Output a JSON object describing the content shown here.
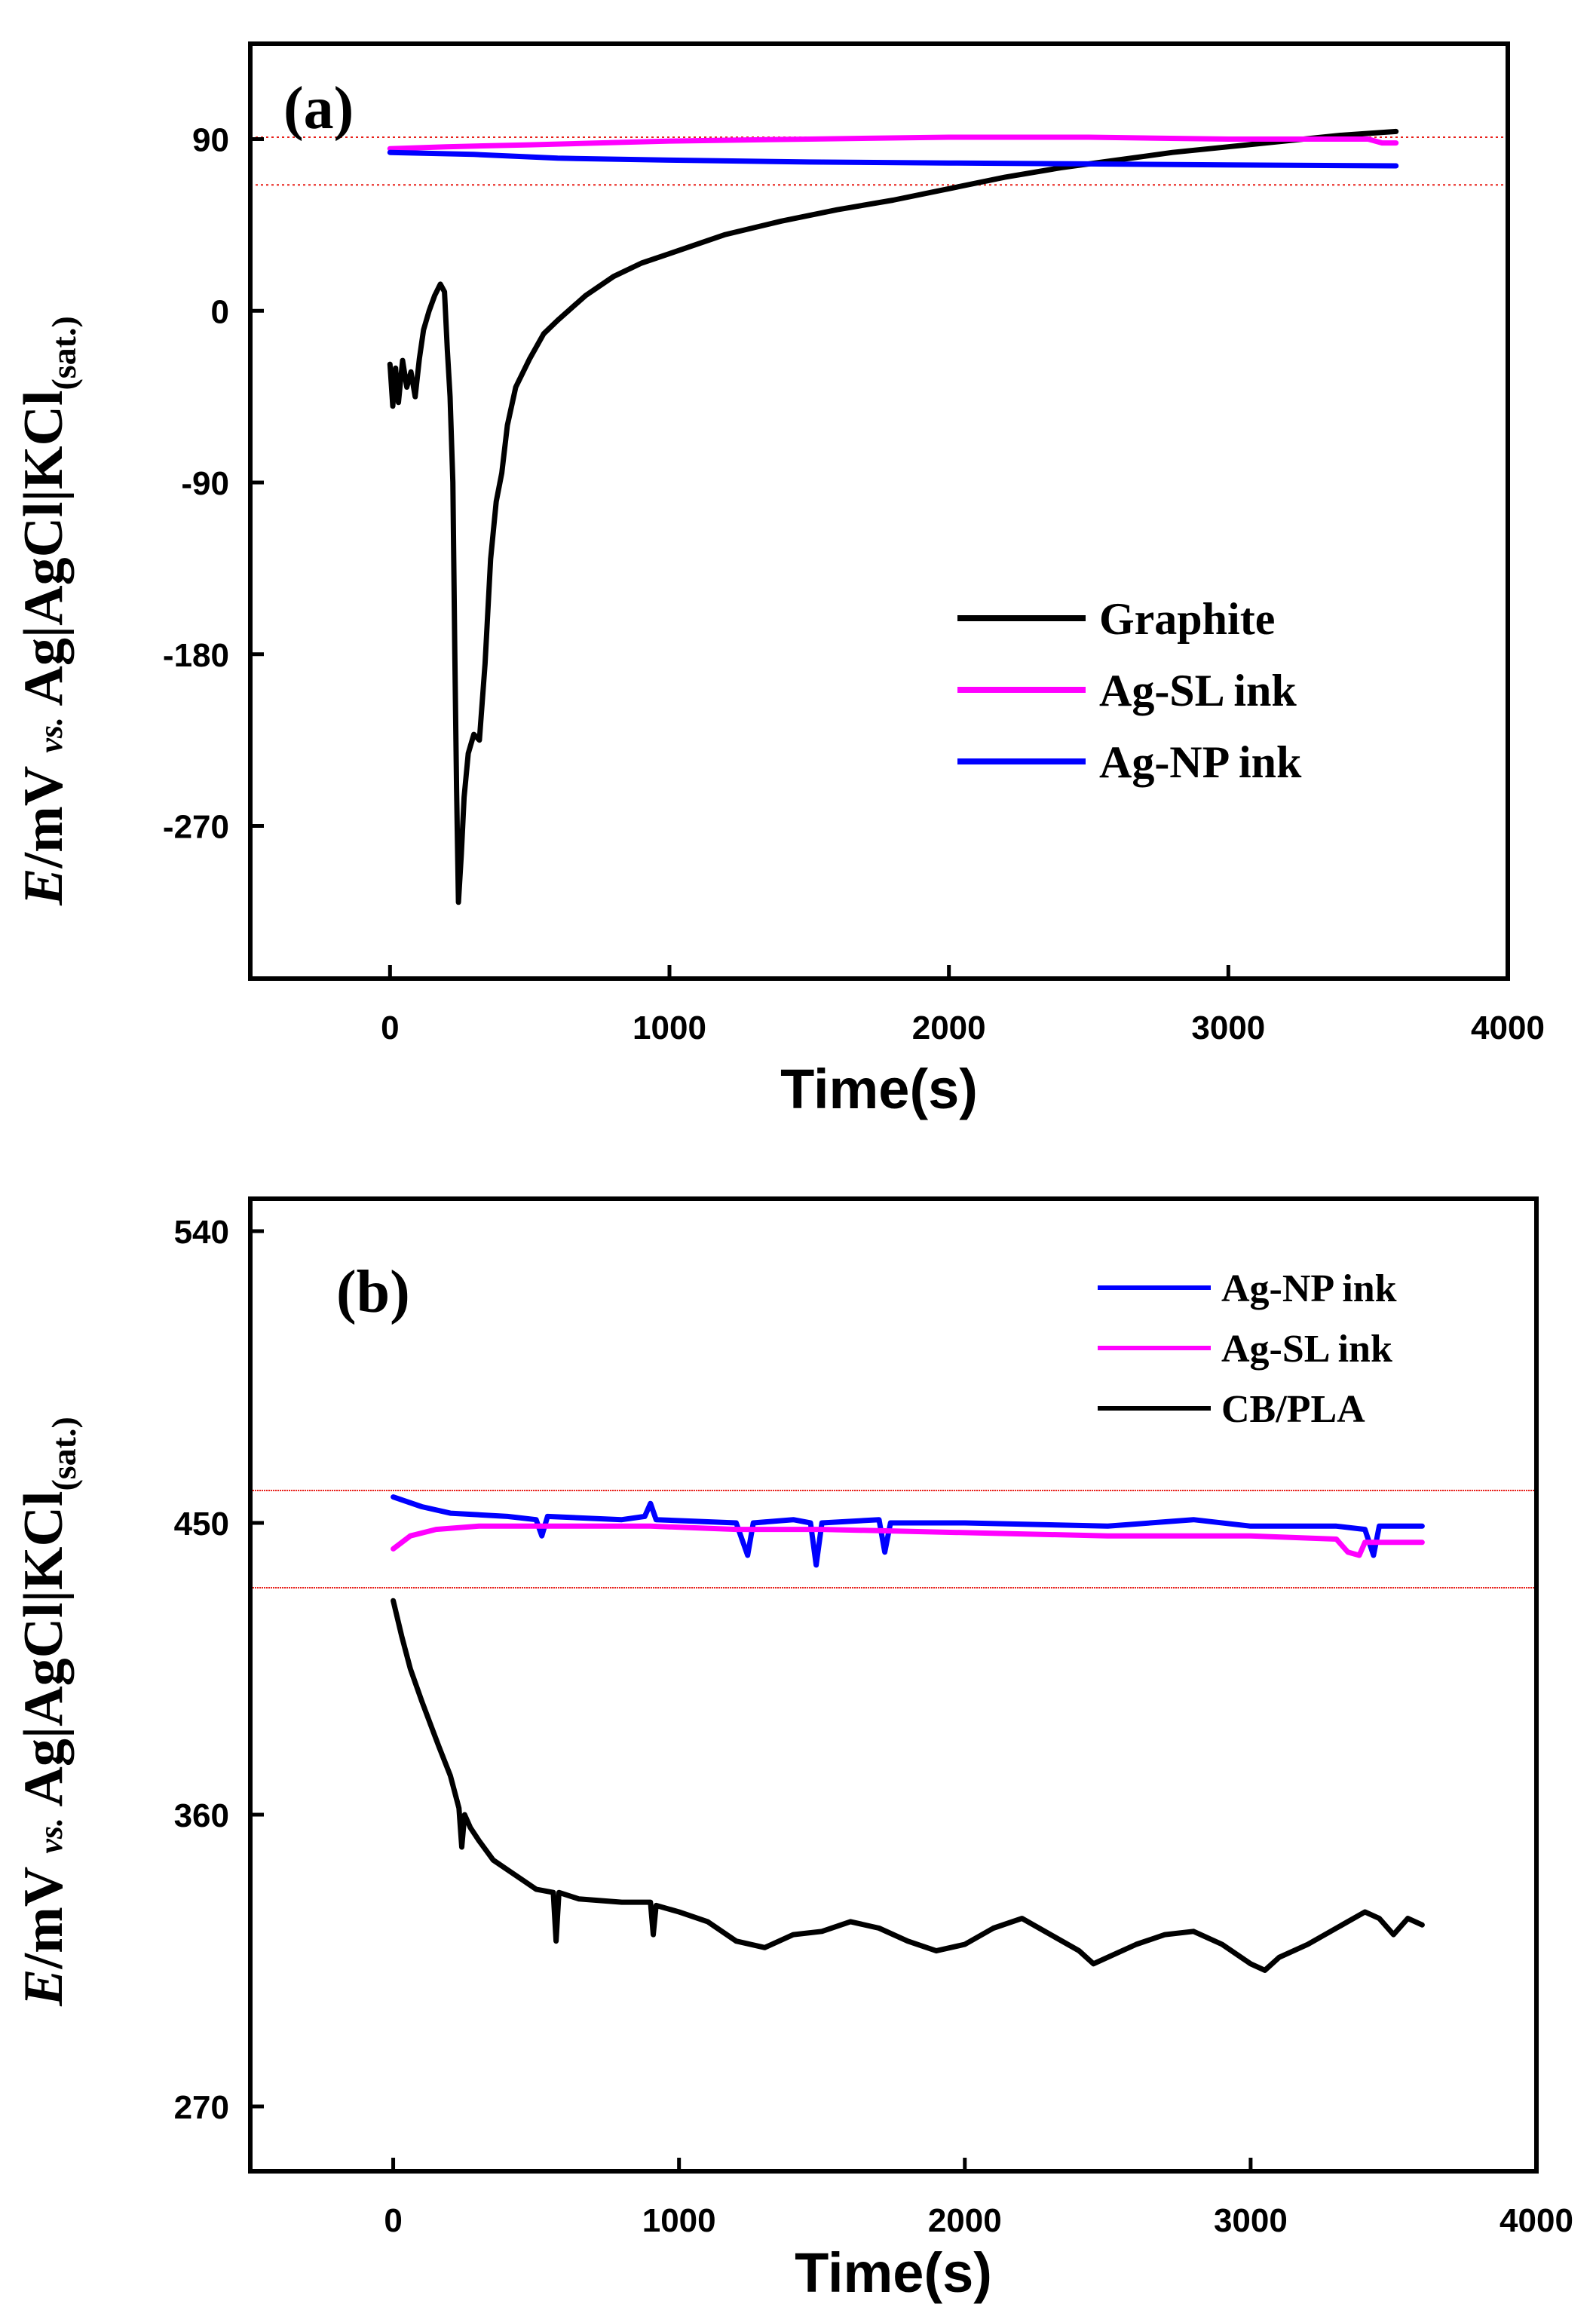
{
  "chart_data": [
    {
      "type": "line",
      "panel_label": "(a)",
      "xlabel": "Time(s)",
      "ylabel": {
        "E": "E",
        "unit": "/mV ",
        "vs": "vs.",
        "ref": " Ag|AgCl|KCl",
        "sub": "(sat.)"
      },
      "xlim": [
        -500,
        4000
      ],
      "ylim": [
        -350,
        140
      ],
      "xticks": [
        0,
        1000,
        2000,
        3000,
        4000
      ],
      "yticks": [
        90,
        0,
        -90,
        -180,
        -270
      ],
      "reference_lines": [
        91,
        66
      ],
      "reference_color": "#e8201a",
      "series": [
        {
          "name": "Graphite",
          "color": "#000000",
          "points": [
            [
              0,
              -28
            ],
            [
              10,
              -50
            ],
            [
              20,
              -30
            ],
            [
              30,
              -48
            ],
            [
              45,
              -26
            ],
            [
              60,
              -40
            ],
            [
              75,
              -32
            ],
            [
              90,
              -45
            ],
            [
              105,
              -25
            ],
            [
              120,
              -10
            ],
            [
              140,
              0
            ],
            [
              160,
              8
            ],
            [
              180,
              14
            ],
            [
              195,
              10
            ],
            [
              205,
              -20
            ],
            [
              215,
              -45
            ],
            [
              225,
              -90
            ],
            [
              232,
              -180
            ],
            [
              238,
              -250
            ],
            [
              245,
              -310
            ],
            [
              255,
              -285
            ],
            [
              265,
              -255
            ],
            [
              280,
              -232
            ],
            [
              300,
              -222
            ],
            [
              320,
              -225
            ],
            [
              340,
              -185
            ],
            [
              360,
              -130
            ],
            [
              380,
              -100
            ],
            [
              400,
              -85
            ],
            [
              420,
              -60
            ],
            [
              450,
              -40
            ],
            [
              500,
              -25
            ],
            [
              550,
              -12
            ],
            [
              600,
              -5
            ],
            [
              700,
              8
            ],
            [
              800,
              18
            ],
            [
              900,
              25
            ],
            [
              1000,
              30
            ],
            [
              1200,
              40
            ],
            [
              1400,
              47
            ],
            [
              1600,
              53
            ],
            [
              1800,
              58
            ],
            [
              2000,
              64
            ],
            [
              2200,
              70
            ],
            [
              2400,
              75
            ],
            [
              2600,
              79
            ],
            [
              2800,
              83
            ],
            [
              3000,
              86
            ],
            [
              3200,
              89
            ],
            [
              3400,
              92
            ],
            [
              3600,
              94
            ]
          ]
        },
        {
          "name": "Ag-SL ink",
          "color": "#ff00ff",
          "points": [
            [
              0,
              85
            ],
            [
              200,
              86
            ],
            [
              500,
              87
            ],
            [
              1000,
              89
            ],
            [
              1500,
              90
            ],
            [
              2000,
              91
            ],
            [
              2500,
              91
            ],
            [
              3000,
              90
            ],
            [
              3300,
              90
            ],
            [
              3500,
              90
            ],
            [
              3550,
              88
            ],
            [
              3600,
              88
            ]
          ]
        },
        {
          "name": " Ag-NP ink",
          "color": "#0000ff",
          "points": [
            [
              0,
              83
            ],
            [
              300,
              82
            ],
            [
              600,
              80
            ],
            [
              1000,
              79
            ],
            [
              1500,
              78
            ],
            [
              2000,
              77.5
            ],
            [
              2500,
              77
            ],
            [
              3000,
              76.5
            ],
            [
              3600,
              76
            ]
          ]
        }
      ]
    },
    {
      "type": "line",
      "panel_label": "(b)",
      "xlabel": "Time(s)",
      "ylabel": {
        "E": "E",
        "unit": "/mV ",
        "vs": "vs.",
        "ref": " Ag|AgCl|KCl",
        "sub": "(sat.)"
      },
      "xlim": [
        -500,
        4000
      ],
      "ylim": [
        250,
        550
      ],
      "xticks": [
        0,
        1000,
        2000,
        3000,
        4000
      ],
      "yticks": [
        540,
        450,
        360,
        270
      ],
      "reference_lines": [
        460,
        430
      ],
      "reference_color": "#e8201a",
      "series": [
        {
          "name": "Ag-NP ink",
          "color": "#0000ff",
          "points": [
            [
              0,
              458
            ],
            [
              100,
              455
            ],
            [
              200,
              453
            ],
            [
              400,
              452
            ],
            [
              500,
              451
            ],
            [
              520,
              446
            ],
            [
              540,
              452
            ],
            [
              800,
              451
            ],
            [
              880,
              452
            ],
            [
              900,
              456
            ],
            [
              920,
              451
            ],
            [
              1200,
              450
            ],
            [
              1240,
              440
            ],
            [
              1260,
              450
            ],
            [
              1400,
              451
            ],
            [
              1460,
              450
            ],
            [
              1480,
              437
            ],
            [
              1500,
              450
            ],
            [
              1700,
              451
            ],
            [
              1720,
              441
            ],
            [
              1740,
              450
            ],
            [
              2000,
              450
            ],
            [
              2500,
              449
            ],
            [
              2800,
              451
            ],
            [
              3000,
              449
            ],
            [
              3300,
              449
            ],
            [
              3400,
              448
            ],
            [
              3430,
              440
            ],
            [
              3450,
              449
            ],
            [
              3600,
              449
            ]
          ]
        },
        {
          "name": "Ag-SL ink",
          "color": "#ff00ff",
          "points": [
            [
              0,
              442
            ],
            [
              60,
              446
            ],
            [
              150,
              448
            ],
            [
              300,
              449
            ],
            [
              600,
              449
            ],
            [
              900,
              449
            ],
            [
              1200,
              448
            ],
            [
              1500,
              448
            ],
            [
              2000,
              447
            ],
            [
              2500,
              446
            ],
            [
              3000,
              446
            ],
            [
              3300,
              445
            ],
            [
              3340,
              441
            ],
            [
              3380,
              440
            ],
            [
              3400,
              444
            ],
            [
              3500,
              444
            ],
            [
              3600,
              444
            ]
          ]
        },
        {
          "name": "CB/PLA",
          "color": "#000000",
          "points": [
            [
              0,
              426
            ],
            [
              30,
              415
            ],
            [
              60,
              405
            ],
            [
              100,
              395
            ],
            [
              130,
              388
            ],
            [
              160,
              381
            ],
            [
              200,
              372
            ],
            [
              230,
              362
            ],
            [
              240,
              350
            ],
            [
              250,
              360
            ],
            [
              270,
              356
            ],
            [
              300,
              352
            ],
            [
              350,
              346
            ],
            [
              400,
              343
            ],
            [
              450,
              340
            ],
            [
              500,
              337
            ],
            [
              560,
              336
            ],
            [
              570,
              321
            ],
            [
              580,
              336
            ],
            [
              650,
              334
            ],
            [
              800,
              333
            ],
            [
              900,
              333
            ],
            [
              910,
              323
            ],
            [
              920,
              332
            ],
            [
              1000,
              330
            ],
            [
              1100,
              327
            ],
            [
              1200,
              321
            ],
            [
              1300,
              319
            ],
            [
              1400,
              323
            ],
            [
              1500,
              324
            ],
            [
              1600,
              327
            ],
            [
              1700,
              325
            ],
            [
              1800,
              321
            ],
            [
              1900,
              318
            ],
            [
              2000,
              320
            ],
            [
              2100,
              325
            ],
            [
              2200,
              328
            ],
            [
              2300,
              323
            ],
            [
              2400,
              318
            ],
            [
              2450,
              314
            ],
            [
              2500,
              316
            ],
            [
              2600,
              320
            ],
            [
              2700,
              323
            ],
            [
              2800,
              324
            ],
            [
              2900,
              320
            ],
            [
              3000,
              314
            ],
            [
              3050,
              312
            ],
            [
              3100,
              316
            ],
            [
              3200,
              320
            ],
            [
              3300,
              325
            ],
            [
              3400,
              330
            ],
            [
              3450,
              328
            ],
            [
              3500,
              323
            ],
            [
              3550,
              328
            ],
            [
              3600,
              326
            ]
          ]
        }
      ]
    }
  ]
}
